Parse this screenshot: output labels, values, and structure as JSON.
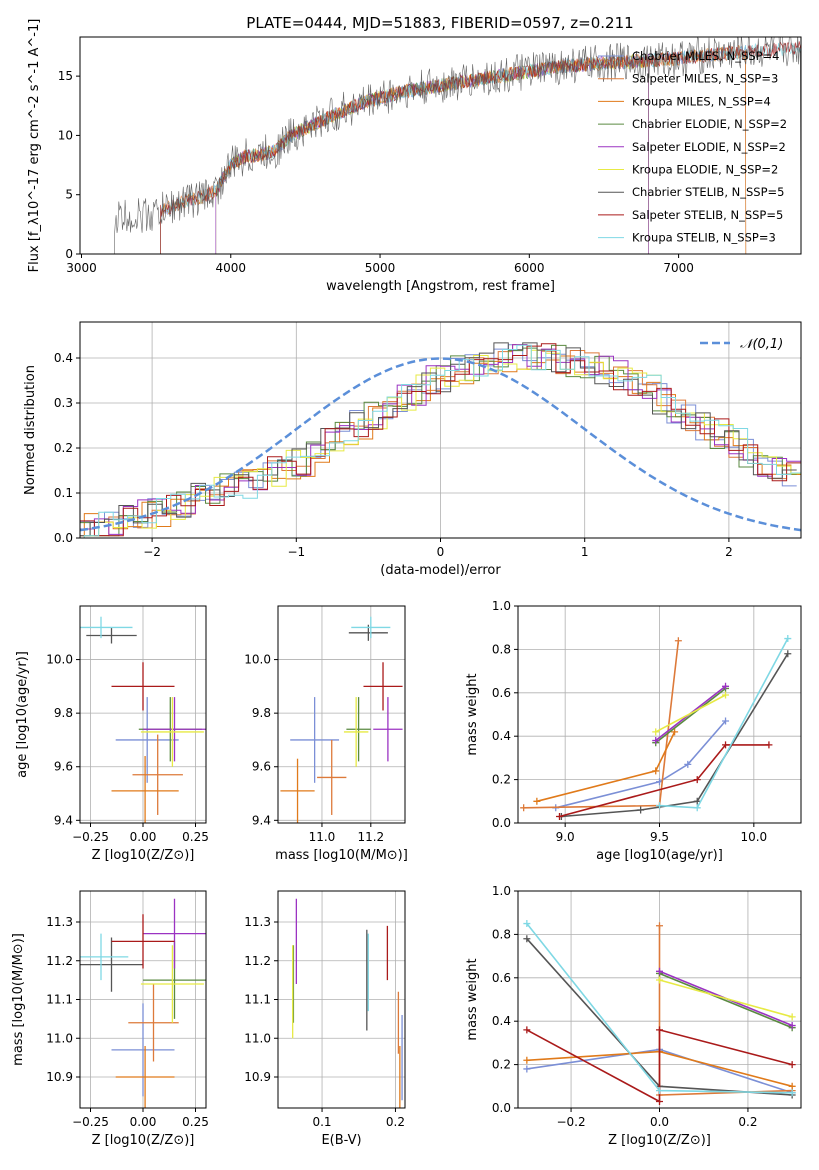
{
  "figure_title": "PLATE=0444, MJD=51883, FIBERID=0597, z=0.211",
  "colors": {
    "Chabrier MILES": "#7b8fd6",
    "Salpeter MILES": "#dd7a3a",
    "Kroupa MILES": "#e07a1a",
    "Chabrier ELODIE": "#5a8a40",
    "Salpeter ELODIE": "#9b33c2",
    "Kroupa ELODIE": "#e7ea44",
    "Chabrier STELIB": "#555555",
    "Salpeter STELIB": "#aa1a1a",
    "Kroupa STELIB": "#7fd8e4",
    "normal_curve": "#5b8fd9"
  },
  "chart_data": [
    {
      "type": "line",
      "id": "spectrum",
      "xlabel": "wavelength [Angstrom, rest frame]",
      "ylabel": "Flux [f_λ10^-17 erg cm^-2 s^-1 A^-1]",
      "xlim": [
        2990,
        7820
      ],
      "ylim": [
        0,
        18.3
      ],
      "xticks": [
        3000,
        4000,
        5000,
        6000,
        7000
      ],
      "yticks": [
        0,
        5,
        10,
        15
      ],
      "grid": false,
      "legend_position": "right",
      "series": [
        {
          "name": "Chabrier MILES, N_SSP=4"
        },
        {
          "name": "Salpeter MILES, N_SSP=3"
        },
        {
          "name": "Kroupa MILES, N_SSP=4"
        },
        {
          "name": "Chabrier ELODIE, N_SSP=2"
        },
        {
          "name": "Salpeter ELODIE, N_SSP=2"
        },
        {
          "name": "Kroupa ELODIE, N_SSP=2"
        },
        {
          "name": "Chabrier STELIB, N_SSP=5"
        },
        {
          "name": "Salpeter STELIB, N_SSP=5"
        },
        {
          "name": "Kroupa STELIB, N_SSP=3"
        }
      ],
      "continuum": {
        "x": [
          3200,
          3300,
          3400,
          3500,
          3600,
          3700,
          3800,
          3900,
          4000,
          4100,
          4200,
          4300,
          4400,
          4500,
          4600,
          4700,
          4800,
          4900,
          5000,
          5200,
          5400,
          5600,
          5800,
          6000,
          6200,
          6400,
          6600,
          6800,
          7000,
          7200,
          7400,
          7600,
          7800
        ],
        "y": [
          2.9,
          3.1,
          3.2,
          3.4,
          4.0,
          4.5,
          4.8,
          5.3,
          7.5,
          8.2,
          8.4,
          8.7,
          10.0,
          10.6,
          11.2,
          11.8,
          12.3,
          12.8,
          13.2,
          13.8,
          14.2,
          14.6,
          15.0,
          15.4,
          15.8,
          16.0,
          16.2,
          16.3,
          16.5,
          16.8,
          17.0,
          17.2,
          17.4
        ]
      }
    },
    {
      "type": "bar",
      "id": "residuals",
      "xlabel": "(data-model)/error",
      "ylabel": "Normed distribution",
      "xlim": [
        -2.5,
        2.5
      ],
      "ylim": [
        0,
        0.48
      ],
      "xticks": [
        -2,
        -1,
        0,
        1,
        2
      ],
      "yticks": [
        0.0,
        0.1,
        0.2,
        0.3,
        0.4
      ],
      "grid": true,
      "legend": [
        "𝒩(0,1)"
      ],
      "legend_position": "top-right",
      "bin_width": 0.1,
      "hist_base": [
        0.02,
        0.03,
        0.03,
        0.04,
        0.05,
        0.06,
        0.07,
        0.08,
        0.09,
        0.1,
        0.11,
        0.12,
        0.14,
        0.15,
        0.16,
        0.17,
        0.19,
        0.21,
        0.23,
        0.25,
        0.27,
        0.29,
        0.31,
        0.33,
        0.35,
        0.36,
        0.37,
        0.38,
        0.39,
        0.4,
        0.4,
        0.4,
        0.4,
        0.4,
        0.39,
        0.38,
        0.37,
        0.36,
        0.35,
        0.33,
        0.31,
        0.29,
        0.27,
        0.25,
        0.23,
        0.21,
        0.19,
        0.17,
        0.16,
        0.15
      ]
    },
    {
      "type": "scatter",
      "id": "age_vs_Z",
      "xlabel": "Z [log10(Z/Z⊙)]",
      "ylabel": "age  [log10(age/yr)]",
      "xlim": [
        -0.3,
        0.3
      ],
      "ylim": [
        9.39,
        10.2
      ],
      "xticks": [
        -0.25,
        0.0,
        0.25
      ],
      "yticks": [
        9.4,
        9.6,
        9.8,
        10.0
      ],
      "grid": true,
      "points": [
        {
          "s": "Chabrier MILES",
          "x": 0.02,
          "y": 9.7,
          "xerr": 0.15,
          "yerr": 0.16
        },
        {
          "s": "Salpeter MILES",
          "x": 0.07,
          "y": 9.57,
          "xerr": 0.12,
          "yerr": 0.15
        },
        {
          "s": "Kroupa MILES",
          "x": 0.01,
          "y": 9.51,
          "xerr": 0.16,
          "yerr": 0.13
        },
        {
          "s": "Chabrier ELODIE",
          "x": 0.13,
          "y": 9.74,
          "xerr": 0.15,
          "yerr": 0.12
        },
        {
          "s": "Salpeter ELODIE",
          "x": 0.15,
          "y": 9.74,
          "xerr": 0.15,
          "yerr": 0.12
        },
        {
          "s": "Kroupa ELODIE",
          "x": 0.14,
          "y": 9.73,
          "xerr": 0.15,
          "yerr": 0.13
        },
        {
          "s": "Chabrier STELIB",
          "x": -0.15,
          "y": 10.09,
          "xerr": 0.12,
          "yerr": 0.03
        },
        {
          "s": "Salpeter STELIB",
          "x": 0.0,
          "y": 9.9,
          "xerr": 0.15,
          "yerr": 0.09
        },
        {
          "s": "Kroupa STELIB",
          "x": -0.2,
          "y": 10.12,
          "xerr": 0.15,
          "yerr": 0.04
        }
      ]
    },
    {
      "type": "scatter",
      "id": "age_vs_mass",
      "xlabel": "mass [log10(M/M⊙)]",
      "ylabel": "",
      "xlim": [
        10.82,
        11.34
      ],
      "ylim": [
        9.39,
        10.2
      ],
      "xticks": [
        11.0,
        11.2
      ],
      "yticks": [
        9.4,
        9.6,
        9.8,
        10.0
      ],
      "grid": true,
      "points": [
        {
          "s": "Chabrier MILES",
          "x": 10.97,
          "y": 9.7,
          "xerr": 0.1,
          "yerr": 0.16
        },
        {
          "s": "Salpeter MILES",
          "x": 11.04,
          "y": 9.56,
          "xerr": 0.06,
          "yerr": 0.14
        },
        {
          "s": "Kroupa MILES",
          "x": 10.9,
          "y": 9.51,
          "xerr": 0.07,
          "yerr": 0.12
        },
        {
          "s": "Chabrier ELODIE",
          "x": 11.15,
          "y": 9.74,
          "xerr": 0.05,
          "yerr": 0.12
        },
        {
          "s": "Salpeter ELODIE",
          "x": 11.27,
          "y": 9.74,
          "xerr": 0.06,
          "yerr": 0.12
        },
        {
          "s": "Kroupa ELODIE",
          "x": 11.14,
          "y": 9.73,
          "xerr": 0.05,
          "yerr": 0.13
        },
        {
          "s": "Chabrier STELIB",
          "x": 11.19,
          "y": 10.1,
          "xerr": 0.08,
          "yerr": 0.03
        },
        {
          "s": "Salpeter STELIB",
          "x": 11.25,
          "y": 9.9,
          "xerr": 0.08,
          "yerr": 0.09
        },
        {
          "s": "Kroupa STELIB",
          "x": 11.2,
          "y": 10.12,
          "xerr": 0.08,
          "yerr": 0.04
        }
      ]
    },
    {
      "type": "line",
      "id": "massweight_vs_age",
      "xlabel": "age  [log10(age/yr)]",
      "ylabel": "mass weight",
      "xlim": [
        8.75,
        10.25
      ],
      "ylim": [
        0,
        1.0
      ],
      "xticks": [
        9.0,
        9.5,
        10.0
      ],
      "yticks": [
        0.0,
        0.2,
        0.4,
        0.6,
        0.8,
        1.0
      ],
      "grid": true,
      "series": [
        {
          "s": "Chabrier MILES",
          "x": [
            8.95,
            9.5,
            9.65,
            9.85
          ],
          "y": [
            0.07,
            0.19,
            0.27,
            0.47
          ]
        },
        {
          "s": "Salpeter MILES",
          "x": [
            8.78,
            9.5,
            9.6
          ],
          "y": [
            0.07,
            0.08,
            0.84
          ]
        },
        {
          "s": "Kroupa MILES",
          "x": [
            8.85,
            9.48,
            9.58
          ],
          "y": [
            0.1,
            0.24,
            0.42
          ]
        },
        {
          "s": "Chabrier ELODIE",
          "x": [
            9.48,
            9.85
          ],
          "y": [
            0.37,
            0.62
          ]
        },
        {
          "s": "Salpeter ELODIE",
          "x": [
            9.48,
            9.85
          ],
          "y": [
            0.38,
            0.63
          ]
        },
        {
          "s": "Kroupa ELODIE",
          "x": [
            9.48,
            9.85
          ],
          "y": [
            0.42,
            0.59
          ]
        },
        {
          "s": "Chabrier STELIB",
          "x": [
            8.98,
            9.4,
            9.7,
            10.18
          ],
          "y": [
            0.03,
            0.06,
            0.1,
            0.78
          ]
        },
        {
          "s": "Salpeter STELIB",
          "x": [
            8.97,
            9.7,
            9.85,
            10.08
          ],
          "y": [
            0.03,
            0.2,
            0.36,
            0.36
          ]
        },
        {
          "s": "Kroupa STELIB",
          "x": [
            9.5,
            9.7,
            10.18
          ],
          "y": [
            0.08,
            0.07,
            0.85
          ]
        }
      ]
    },
    {
      "type": "scatter",
      "id": "mass_vs_Z",
      "xlabel": "Z [log10(Z/Z⊙)]",
      "ylabel": "mass [log10(M/M⊙)]",
      "xlim": [
        -0.3,
        0.3
      ],
      "ylim": [
        10.82,
        11.38
      ],
      "xticks": [
        -0.25,
        0.0,
        0.25
      ],
      "yticks": [
        10.9,
        11.0,
        11.1,
        11.2,
        11.3
      ],
      "grid": true,
      "points": [
        {
          "s": "Chabrier MILES",
          "x": 0.0,
          "y": 10.97,
          "xerr": 0.15,
          "yerr": 0.12
        },
        {
          "s": "Salpeter MILES",
          "x": 0.05,
          "y": 11.04,
          "xerr": 0.12,
          "yerr": 0.1
        },
        {
          "s": "Kroupa MILES",
          "x": 0.01,
          "y": 10.9,
          "xerr": 0.14,
          "yerr": 0.08
        },
        {
          "s": "Chabrier ELODIE",
          "x": 0.15,
          "y": 11.15,
          "xerr": 0.15,
          "yerr": 0.1
        },
        {
          "s": "Salpeter ELODIE",
          "x": 0.15,
          "y": 11.27,
          "xerr": 0.15,
          "yerr": 0.09
        },
        {
          "s": "Kroupa ELODIE",
          "x": 0.14,
          "y": 11.14,
          "xerr": 0.15,
          "yerr": 0.1
        },
        {
          "s": "Chabrier STELIB",
          "x": -0.15,
          "y": 11.19,
          "xerr": 0.15,
          "yerr": 0.07
        },
        {
          "s": "Salpeter STELIB",
          "x": 0.0,
          "y": 11.25,
          "xerr": 0.15,
          "yerr": 0.07
        },
        {
          "s": "Kroupa STELIB",
          "x": -0.2,
          "y": 11.21,
          "xerr": 0.13,
          "yerr": 0.06
        }
      ]
    },
    {
      "type": "scatter",
      "id": "mass_vs_EBV",
      "xlabel": "E(B-V)",
      "ylabel": "",
      "xlim": [
        0.04,
        0.213
      ],
      "ylim": [
        10.82,
        11.38
      ],
      "xticks": [
        0.1,
        0.2
      ],
      "yticks": [
        10.9,
        11.0,
        11.1,
        11.2,
        11.3
      ],
      "grid": true,
      "points": [
        {
          "s": "Chabrier MILES",
          "x": 0.209,
          "y": 10.95,
          "xerr": 0,
          "yerr": 0.11
        },
        {
          "s": "Salpeter MILES",
          "x": 0.204,
          "y": 11.04,
          "xerr": 0,
          "yerr": 0.08
        },
        {
          "s": "Kroupa MILES",
          "x": 0.206,
          "y": 10.9,
          "xerr": 0,
          "yerr": 0.08
        },
        {
          "s": "Chabrier ELODIE",
          "x": 0.061,
          "y": 11.14,
          "xerr": 0,
          "yerr": 0.1
        },
        {
          "s": "Salpeter ELODIE",
          "x": 0.065,
          "y": 11.25,
          "xerr": 0,
          "yerr": 0.11
        },
        {
          "s": "Kroupa ELODIE",
          "x": 0.06,
          "y": 11.12,
          "xerr": 0,
          "yerr": 0.12
        },
        {
          "s": "Chabrier STELIB",
          "x": 0.161,
          "y": 11.15,
          "xerr": 0,
          "yerr": 0.13
        },
        {
          "s": "Salpeter STELIB",
          "x": 0.189,
          "y": 11.22,
          "xerr": 0,
          "yerr": 0.07
        },
        {
          "s": "Kroupa STELIB",
          "x": 0.163,
          "y": 11.17,
          "xerr": 0,
          "yerr": 0.1
        }
      ]
    },
    {
      "type": "line",
      "id": "massweight_vs_Z",
      "xlabel": "Z [log10(Z/Z⊙)]",
      "ylabel": "mass weight",
      "xlim": [
        -0.32,
        0.32
      ],
      "ylim": [
        0,
        1.0
      ],
      "xticks": [
        -0.2,
        0.0,
        0.2
      ],
      "yticks": [
        0.0,
        0.2,
        0.4,
        0.6,
        0.8,
        1.0
      ],
      "grid": true,
      "series": [
        {
          "s": "Chabrier MILES",
          "x": [
            -0.3,
            0.0,
            0.3
          ],
          "y": [
            0.18,
            0.27,
            0.07
          ]
        },
        {
          "s": "Salpeter MILES",
          "x": [
            0.0,
            0.0,
            0.3
          ],
          "y": [
            0.84,
            0.06,
            0.08
          ]
        },
        {
          "s": "Kroupa MILES",
          "x": [
            -0.3,
            0.0,
            0.3
          ],
          "y": [
            0.22,
            0.26,
            0.1
          ]
        },
        {
          "s": "Chabrier ELODIE",
          "x": [
            0.0,
            0.3
          ],
          "y": [
            0.62,
            0.37
          ]
        },
        {
          "s": "Salpeter ELODIE",
          "x": [
            0.0,
            0.3
          ],
          "y": [
            0.63,
            0.38
          ]
        },
        {
          "s": "Kroupa ELODIE",
          "x": [
            0.0,
            0.3
          ],
          "y": [
            0.59,
            0.42
          ]
        },
        {
          "s": "Chabrier STELIB",
          "x": [
            -0.3,
            0.0,
            0.3
          ],
          "y": [
            0.78,
            0.1,
            0.06
          ]
        },
        {
          "s": "Salpeter STELIB",
          "x": [
            -0.3,
            0.0,
            0.0,
            0.3
          ],
          "y": [
            0.36,
            0.03,
            0.36,
            0.2
          ]
        },
        {
          "s": "Kroupa STELIB",
          "x": [
            -0.3,
            0.0,
            0.3
          ],
          "y": [
            0.85,
            0.08,
            0.07
          ]
        }
      ]
    }
  ]
}
